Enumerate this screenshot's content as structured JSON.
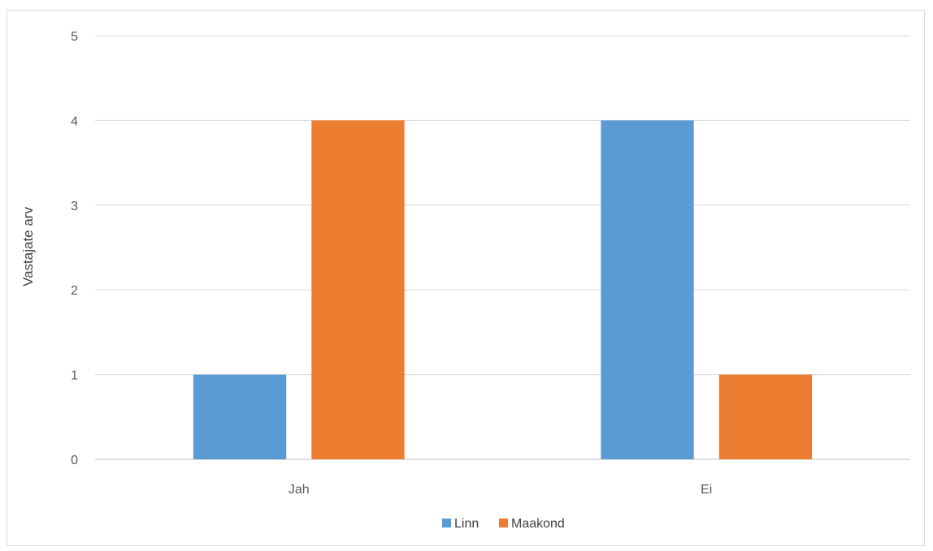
{
  "chart_data": {
    "type": "bar",
    "title": "",
    "xlabel": "",
    "ylabel": "Vastajate arv",
    "categories": [
      "Jah",
      "Ei"
    ],
    "series": [
      {
        "name": "Linn",
        "values": [
          1,
          4
        ],
        "color": "#5b9bd5"
      },
      {
        "name": "Maakond",
        "values": [
          4,
          1
        ],
        "color": "#ed7d31"
      }
    ],
    "ylim": [
      0,
      5
    ],
    "yticks": [
      "0",
      "1",
      "2",
      "3",
      "4",
      "5"
    ],
    "grid": true,
    "legend_position": "bottom"
  }
}
